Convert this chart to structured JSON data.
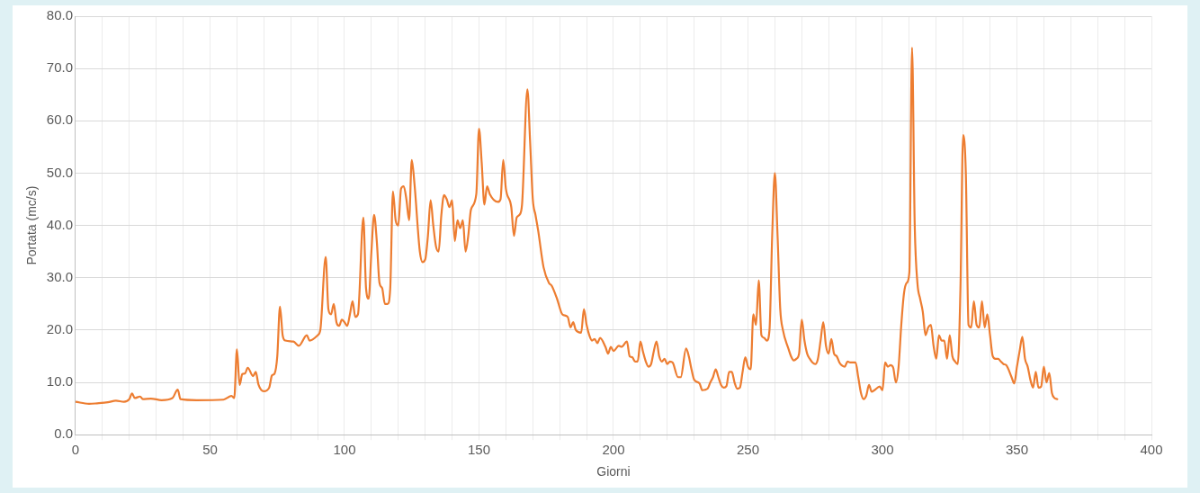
{
  "chart_data": {
    "type": "line",
    "xlabel": "Giorni",
    "ylabel": "Portata (mc/s)",
    "xlim": [
      0,
      400
    ],
    "xticks": [
      0,
      {
        "value": 10,
        "label": null
      },
      {
        "value": 20,
        "label": null
      },
      {
        "value": 30,
        "label": null
      },
      {
        "value": 40,
        "label": null
      },
      50,
      {
        "value": 60,
        "label": null
      },
      {
        "value": 70,
        "label": null
      },
      {
        "value": 80,
        "label": null
      },
      {
        "value": 90,
        "label": null
      },
      100,
      {
        "value": 110,
        "label": null
      },
      {
        "value": 120,
        "label": null
      },
      {
        "value": 130,
        "label": null
      },
      {
        "value": 140,
        "label": null
      },
      150,
      {
        "value": 160,
        "label": null
      },
      {
        "value": 170,
        "label": null
      },
      {
        "value": 180,
        "label": null
      },
      {
        "value": 190,
        "label": null
      },
      200,
      {
        "value": 210,
        "label": null
      },
      {
        "value": 220,
        "label": null
      },
      {
        "value": 230,
        "label": null
      },
      {
        "value": 240,
        "label": null
      },
      250,
      {
        "value": 260,
        "label": null
      },
      {
        "value": 270,
        "label": null
      },
      {
        "value": 280,
        "label": null
      },
      {
        "value": 290,
        "label": null
      },
      300,
      {
        "value": 310,
        "label": null
      },
      {
        "value": 320,
        "label": null
      },
      {
        "value": 330,
        "label": null
      },
      {
        "value": 340,
        "label": null
      },
      350,
      {
        "value": 360,
        "label": null
      },
      {
        "value": 370,
        "label": null
      },
      {
        "value": 380,
        "label": null
      },
      {
        "value": 390,
        "label": null
      },
      400
    ],
    "ylim": [
      0,
      80
    ],
    "yticks": [
      {
        "value": 0,
        "label": "0.0"
      },
      {
        "value": 10,
        "label": "10.0"
      },
      {
        "value": 20,
        "label": "20.0"
      },
      {
        "value": 30,
        "label": "30.0"
      },
      {
        "value": 40,
        "label": "40.0"
      },
      {
        "value": 50,
        "label": "50.0"
      },
      {
        "value": 60,
        "label": "60.0"
      },
      {
        "value": 70,
        "label": "70.0"
      },
      {
        "value": 80,
        "label": "80.0"
      }
    ],
    "grid": true,
    "legend": false,
    "marker": "none",
    "line_style": "solid",
    "series": [
      {
        "color": "#ed7d31",
        "x": [
          0,
          5,
          8,
          12,
          15,
          18,
          20,
          21,
          22,
          24,
          25,
          28,
          32,
          36,
          38,
          39,
          45,
          55,
          58,
          59,
          60,
          61,
          62,
          63,
          64,
          66,
          67,
          68,
          70,
          72,
          73,
          74,
          75,
          76,
          77,
          78,
          81,
          83,
          86,
          87,
          90,
          91,
          93,
          94,
          95,
          96,
          97,
          98,
          99,
          100,
          101,
          102,
          103,
          104,
          105,
          107,
          108,
          109,
          110,
          111,
          112,
          113,
          114,
          115,
          116,
          117,
          118,
          119,
          120,
          121,
          122,
          123,
          124,
          125,
          126,
          128,
          129,
          130,
          131,
          132,
          133,
          134,
          135,
          136,
          137,
          138,
          139,
          140,
          141,
          142,
          143,
          144,
          145,
          146,
          147,
          149,
          150,
          151,
          152,
          153,
          154,
          157,
          158,
          159,
          160,
          162,
          163,
          164,
          165,
          166,
          168,
          169,
          170,
          171,
          172,
          174,
          176,
          177,
          179,
          181,
          183,
          184,
          185,
          186,
          188,
          189,
          190,
          191,
          192,
          193,
          194,
          195,
          197,
          198,
          199,
          200,
          202,
          203,
          205,
          206,
          207,
          208,
          209,
          210,
          211,
          212,
          213,
          214,
          215,
          216,
          217,
          218,
          219,
          220,
          221,
          222,
          224,
          225,
          227,
          228,
          229,
          230,
          232,
          233,
          235,
          236,
          237,
          238,
          239,
          240,
          241,
          242,
          243,
          244,
          245,
          246,
          247,
          248,
          249,
          250,
          251,
          252,
          253,
          254,
          255,
          256,
          257,
          258,
          259,
          260,
          261,
          262,
          263,
          265,
          266,
          267,
          268,
          269,
          270,
          271,
          272,
          273,
          274,
          275,
          276,
          277,
          278,
          279,
          280,
          281,
          282,
          283,
          284,
          285,
          286,
          287,
          288,
          290,
          291,
          292,
          293,
          294,
          295,
          296,
          297,
          299,
          300,
          301,
          302,
          303,
          304,
          305,
          306,
          307,
          308,
          309,
          310,
          311,
          312,
          313,
          314,
          315,
          316,
          317,
          318,
          319,
          320,
          321,
          322,
          323,
          324,
          325,
          326,
          327,
          328,
          329,
          330,
          331,
          332,
          333,
          334,
          335,
          336,
          337,
          338,
          339,
          340,
          341,
          342,
          343,
          344,
          345,
          346,
          348,
          349,
          350,
          351,
          352,
          353,
          354,
          355,
          356,
          357,
          358,
          359,
          360,
          361,
          362,
          363,
          364,
          365
        ],
        "values": [
          6.3,
          5.9,
          6.0,
          6.2,
          6.5,
          6.3,
          6.8,
          7.9,
          7.0,
          7.3,
          6.8,
          6.9,
          6.6,
          7.0,
          8.6,
          6.8,
          6.6,
          6.7,
          7.4,
          7.0,
          16.3,
          9.5,
          11.6,
          11.7,
          12.8,
          11.2,
          12.0,
          9.6,
          8.3,
          9.0,
          11.3,
          11.7,
          15.0,
          24.5,
          19.0,
          18.0,
          17.8,
          17.0,
          19.0,
          18.0,
          19.0,
          20.0,
          34.0,
          24.0,
          23.0,
          25.0,
          21.5,
          20.8,
          22.0,
          21.5,
          20.8,
          23.0,
          25.5,
          22.5,
          23.0,
          41.5,
          28.0,
          26.0,
          35.0,
          42.0,
          37.0,
          29.0,
          28.0,
          25.0,
          25.0,
          28.0,
          46.5,
          41.0,
          40.0,
          47.0,
          47.5,
          45.0,
          41.0,
          52.5,
          48.0,
          35.0,
          33.0,
          33.5,
          38.0,
          44.8,
          40.0,
          36.0,
          35.0,
          42.0,
          45.8,
          45.0,
          43.5,
          44.8,
          37.0,
          41.0,
          39.5,
          41.0,
          35.0,
          38.0,
          43.0,
          46.0,
          58.5,
          52.0,
          44.0,
          47.5,
          46.0,
          44.5,
          45.0,
          52.5,
          47.0,
          43.5,
          38.0,
          41.5,
          42.0,
          44.0,
          66.0,
          56.0,
          45.0,
          42.0,
          39.0,
          32.0,
          29.0,
          28.5,
          26.0,
          23.0,
          22.5,
          20.5,
          21.5,
          20.0,
          19.5,
          24.0,
          21.0,
          19.0,
          18.0,
          18.3,
          17.5,
          18.5,
          16.8,
          15.5,
          16.8,
          16.0,
          17.0,
          16.8,
          17.8,
          15.0,
          14.8,
          14.0,
          14.0,
          17.8,
          15.8,
          14.0,
          13.0,
          13.5,
          16.0,
          17.8,
          15.0,
          14.0,
          14.5,
          13.5,
          14.0,
          13.8,
          11.0,
          11.0,
          16.5,
          15.0,
          12.5,
          10.5,
          9.8,
          8.5,
          8.8,
          10.0,
          11.0,
          12.5,
          11.0,
          9.5,
          9.0,
          9.3,
          12.0,
          12.0,
          10.0,
          8.8,
          9.0,
          12.0,
          14.8,
          13.0,
          12.5,
          23.0,
          21.0,
          29.5,
          19.0,
          18.5,
          18.0,
          20.0,
          38.0,
          50.0,
          38.0,
          24.0,
          20.0,
          16.5,
          15.0,
          14.2,
          14.5,
          15.5,
          22.0,
          18.0,
          15.5,
          14.5,
          13.8,
          13.5,
          14.5,
          18.0,
          21.5,
          17.0,
          15.5,
          18.3,
          15.5,
          15.0,
          13.8,
          13.2,
          13.0,
          14.0,
          13.8,
          13.8,
          11.0,
          8.0,
          6.8,
          7.5,
          9.5,
          8.2,
          8.5,
          9.2,
          8.5,
          13.8,
          13.0,
          13.3,
          12.8,
          10.0,
          13.0,
          21.0,
          27.0,
          29.0,
          31.0,
          74.0,
          40.0,
          29.0,
          26.0,
          23.5,
          19.0,
          20.5,
          21.0,
          17.0,
          14.5,
          19.0,
          18.0,
          18.0,
          14.5,
          19.0,
          15.0,
          14.0,
          13.5,
          28.0,
          57.3,
          50.0,
          21.0,
          20.5,
          25.5,
          21.0,
          20.5,
          25.5,
          20.5,
          23.0,
          19.0,
          15.0,
          14.5,
          14.5,
          14.0,
          13.5,
          13.3,
          11.0,
          9.8,
          13.0,
          16.0,
          18.7,
          14.5,
          13.0,
          10.5,
          9.0,
          12.0,
          9.0,
          9.2,
          13.0,
          10.0,
          11.8,
          8.0,
          7.0,
          6.8
        ]
      }
    ]
  }
}
